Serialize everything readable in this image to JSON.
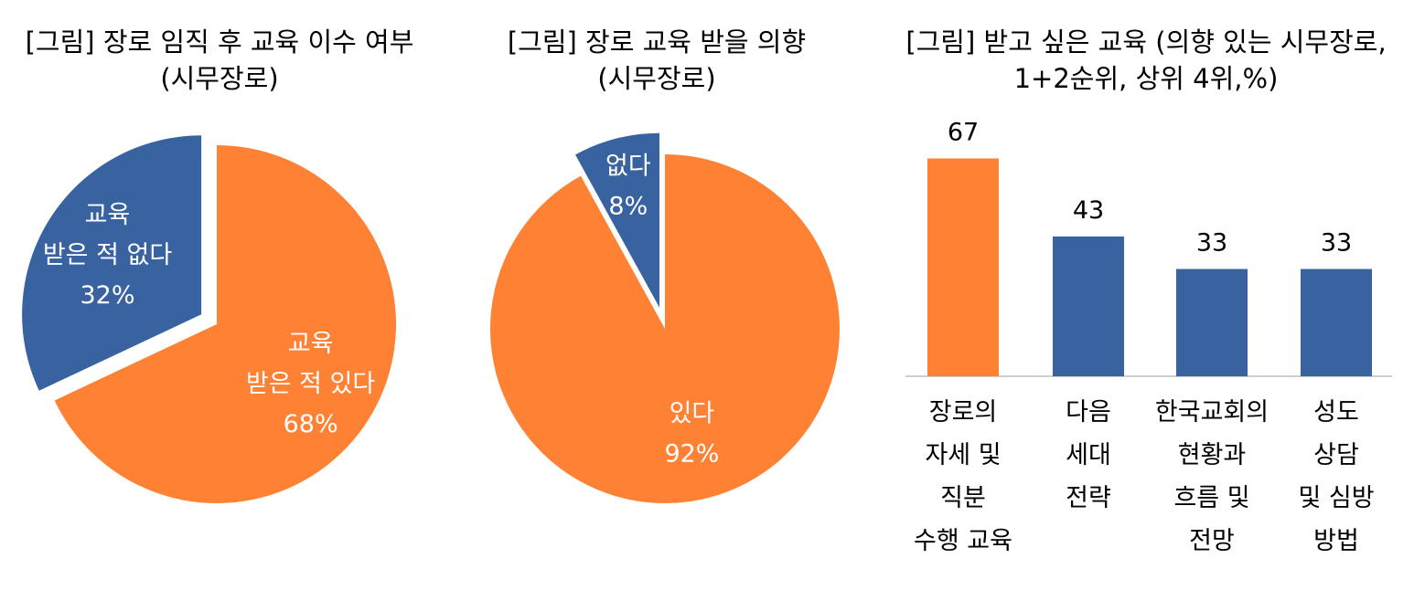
{
  "colors": {
    "orange": "#FF8133",
    "blue": "#3963A0",
    "axis": "#BFBFBF"
  },
  "chart_data": [
    {
      "type": "pie",
      "title": "[그림] 장로 임직 후 교육 이수 여부\n(시무장로)",
      "slices": [
        {
          "label": "교육\n받은 적 있다",
          "percent_label": "68%",
          "value": 68,
          "color": "#FF8133"
        },
        {
          "label": "교육\n받은 적 없다",
          "percent_label": "32%",
          "value": 32,
          "color": "#3963A0",
          "exploded": true
        }
      ]
    },
    {
      "type": "pie",
      "title": "[그림] 장로 교육 받을 의향\n(시무장로)",
      "slices": [
        {
          "label": "있다",
          "percent_label": "92%",
          "value": 92,
          "color": "#FF8133"
        },
        {
          "label": "없다",
          "percent_label": "8%",
          "value": 8,
          "color": "#3963A0",
          "exploded": true
        }
      ]
    },
    {
      "type": "bar",
      "title": "[그림] 받고 싶은 교육 (의향 있는 시무장로,\n1+2순위, 상위 4위,%)",
      "categories": [
        "장로의\n자세 및\n직분\n수행 교육",
        "다음\n세대\n전략",
        "한국교회의\n현황과\n흐름 및\n전망",
        "성도\n상담\n및 심방\n방법"
      ],
      "values": [
        67,
        43,
        33,
        33
      ],
      "value_labels": [
        "67",
        "43",
        "33",
        "33"
      ],
      "colors": [
        "#FF8133",
        "#3963A0",
        "#3963A0",
        "#3963A0"
      ],
      "ylim": [
        0,
        100
      ]
    }
  ]
}
